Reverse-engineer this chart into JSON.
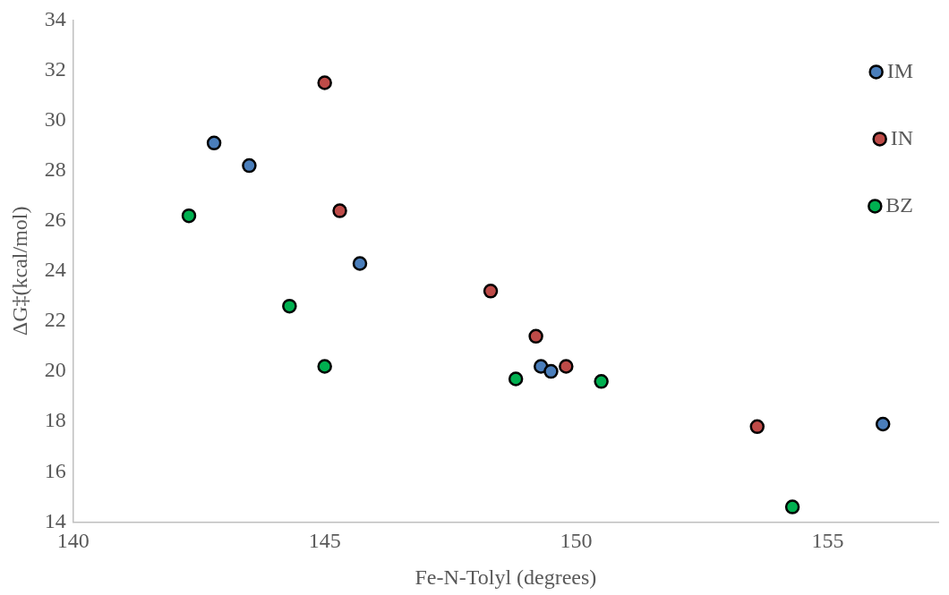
{
  "chart_data": {
    "type": "scatter",
    "xlabel": "Fe-N-Tolyl (degrees)",
    "ylabel": "ΔG‡(kcal/mol)",
    "xlim": [
      140,
      157.2
    ],
    "xticks": [
      140,
      145,
      150,
      155
    ],
    "ylim": [
      14,
      34
    ],
    "yticks": [
      14,
      16,
      18,
      20,
      22,
      24,
      26,
      28,
      30,
      32,
      34
    ],
    "grid": false,
    "legend": "top right",
    "marker": "circle",
    "series": [
      {
        "name": "IM",
        "color": "#4a7ebb",
        "x": [
          142.8,
          143.5,
          145.7,
          149.3,
          149.5,
          156.1
        ],
        "values": [
          29.1,
          28.2,
          24.3,
          20.2,
          20.0,
          17.9
        ]
      },
      {
        "name": "IN",
        "color": "#be4b48",
        "x": [
          145.0,
          145.3,
          148.3,
          149.2,
          149.8,
          153.6
        ],
        "values": [
          31.5,
          26.4,
          23.2,
          21.4,
          20.2,
          17.8
        ]
      },
      {
        "name": "BZ",
        "color": "#00b050",
        "x": [
          142.3,
          144.3,
          145.0,
          148.8,
          150.5,
          154.3
        ],
        "values": [
          26.2,
          22.6,
          20.2,
          19.7,
          19.6,
          14.6
        ]
      }
    ]
  }
}
